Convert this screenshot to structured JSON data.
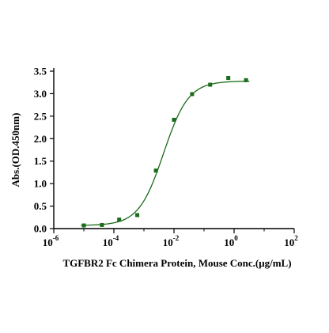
{
  "chart_data": {
    "type": "scatter",
    "title": "",
    "xlabel": "TGFBR2 Fc Chimera Protein, Mouse Conc.(μg/mL)",
    "ylabel": "Abs.(OD.450nm)",
    "x_scale": "log",
    "xlim": [
      1e-06,
      100
    ],
    "ylim": [
      0,
      3.5
    ],
    "x_ticks": [
      {
        "base": "10",
        "exp": "-6"
      },
      {
        "base": "10",
        "exp": "-4"
      },
      {
        "base": "10",
        "exp": "-2"
      },
      {
        "base": "10",
        "exp": "0"
      },
      {
        "base": "10",
        "exp": "2"
      }
    ],
    "y_ticks": [
      "0.0",
      "0.5",
      "1.0",
      "1.5",
      "2.0",
      "2.5",
      "3.0",
      "3.5"
    ],
    "grid": false,
    "legend": "none",
    "series": [
      {
        "marker": "square",
        "color": "#1a6b1a",
        "points": [
          {
            "x": 1e-05,
            "y": 0.07
          },
          {
            "x": 4e-05,
            "y": 0.08
          },
          {
            "x": 0.00015,
            "y": 0.2
          },
          {
            "x": 0.0006,
            "y": 0.3
          },
          {
            "x": 0.0025,
            "y": 1.29
          },
          {
            "x": 0.01,
            "y": 2.42
          },
          {
            "x": 0.04,
            "y": 2.99
          },
          {
            "x": 0.16,
            "y": 3.2
          },
          {
            "x": 0.64,
            "y": 3.35
          },
          {
            "x": 2.5,
            "y": 3.3
          }
        ]
      }
    ],
    "fit_curve": {
      "model": "4PL",
      "color": "#1a6b1a",
      "bottom": 0.07,
      "top": 3.28,
      "ec50": 0.0045,
      "hill": 1.05
    }
  }
}
